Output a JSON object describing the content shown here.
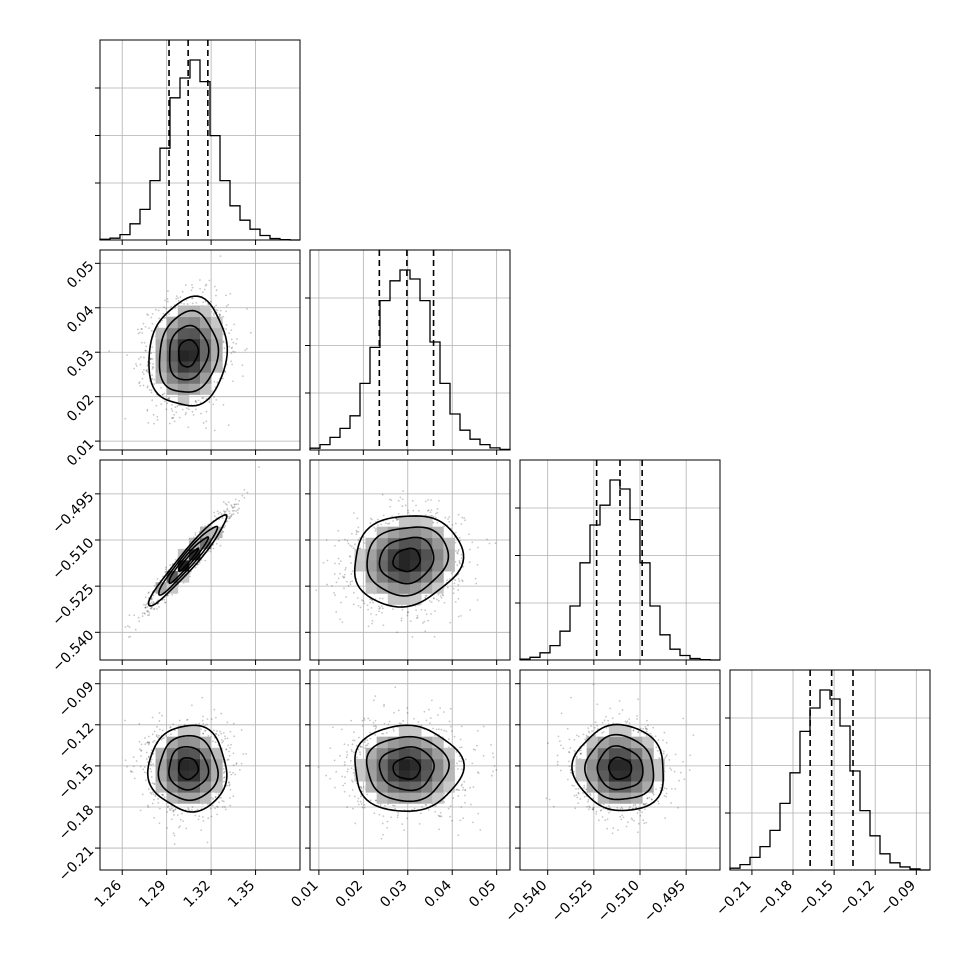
{
  "chart_data": {
    "type": "corner",
    "parameters": [
      {
        "range": [
          1.245,
          1.38
        ],
        "ticks": [
          {
            "value": 1.26,
            "label": "1.26"
          },
          {
            "value": 1.29,
            "label": "1.29"
          },
          {
            "value": 1.32,
            "label": "1.32"
          },
          {
            "value": 1.35,
            "label": "1.35"
          }
        ],
        "quantiles": [
          1.2916,
          1.3045,
          1.3178
        ],
        "histogram": {
          "edges": [
            1.245,
            1.25175,
            1.2585,
            1.26525,
            1.272,
            1.27875,
            1.2855,
            1.29225,
            1.299,
            1.30575,
            1.3125,
            1.31925,
            1.326,
            1.33275,
            1.3395,
            1.34625,
            1.353,
            1.35975,
            1.3665,
            1.37325,
            1.38
          ],
          "counts": [
            0.004,
            0.01,
            0.03,
            0.09,
            0.17,
            0.33,
            0.51,
            0.79,
            0.9,
            1.0,
            0.88,
            0.58,
            0.33,
            0.19,
            0.11,
            0.06,
            0.025,
            0.008,
            0.002,
            0.0
          ]
        }
      },
      {
        "range": [
          0.008,
          0.053
        ],
        "ticks": [
          {
            "value": 0.01,
            "label": "0.01"
          },
          {
            "value": 0.02,
            "label": "0.02"
          },
          {
            "value": 0.03,
            "label": "0.03"
          },
          {
            "value": 0.04,
            "label": "0.04"
          },
          {
            "value": 0.05,
            "label": "0.05"
          }
        ],
        "quantiles": [
          0.0236,
          0.0298,
          0.0358
        ],
        "histogram": {
          "edges": [
            0.008,
            0.01025,
            0.0125,
            0.01475,
            0.017,
            0.01925,
            0.0215,
            0.02375,
            0.026,
            0.02825,
            0.0305,
            0.03275,
            0.035,
            0.03725,
            0.0395,
            0.04175,
            0.044,
            0.04625,
            0.0485,
            0.05075,
            0.053
          ],
          "counts": [
            0.01,
            0.03,
            0.07,
            0.12,
            0.19,
            0.37,
            0.57,
            0.83,
            0.94,
            1.0,
            0.95,
            0.83,
            0.6,
            0.37,
            0.2,
            0.11,
            0.06,
            0.03,
            0.012,
            0.003
          ]
        }
      },
      {
        "range": [
          -0.549,
          -0.484
        ],
        "ticks": [
          {
            "value": -0.54,
            "label": "−0.540"
          },
          {
            "value": -0.525,
            "label": "−0.525"
          },
          {
            "value": -0.51,
            "label": "−0.510"
          },
          {
            "value": -0.495,
            "label": "−0.495"
          }
        ],
        "quantiles": [
          -0.5241,
          -0.5165,
          -0.5093
        ],
        "histogram": {
          "edges": [
            -0.549,
            -0.54575,
            -0.5425,
            -0.53925,
            -0.536,
            -0.53275,
            -0.5295,
            -0.52625,
            -0.523,
            -0.51975,
            -0.5165,
            -0.51325,
            -0.51,
            -0.50675,
            -0.5035,
            -0.50025,
            -0.497,
            -0.49375,
            -0.4905,
            -0.48725,
            -0.484
          ],
          "counts": [
            0.005,
            0.015,
            0.04,
            0.08,
            0.16,
            0.3,
            0.54,
            0.75,
            0.86,
            1.0,
            0.95,
            0.78,
            0.54,
            0.3,
            0.14,
            0.06,
            0.025,
            0.008,
            0.002,
            0.0
          ]
        }
      },
      {
        "range": [
          -0.226,
          -0.08
        ],
        "ticks": [
          {
            "value": -0.21,
            "label": "−0.21"
          },
          {
            "value": -0.18,
            "label": "−0.18"
          },
          {
            "value": -0.15,
            "label": "−0.15"
          },
          {
            "value": -0.12,
            "label": "−0.12"
          },
          {
            "value": -0.09,
            "label": "−0.09"
          }
        ],
        "quantiles": [
          -0.1675,
          -0.1518,
          -0.1362
        ],
        "histogram": {
          "edges": [
            -0.226,
            -0.2187,
            -0.2114,
            -0.2041,
            -0.1968,
            -0.1895,
            -0.1822,
            -0.1749,
            -0.1676,
            -0.1603,
            -0.153,
            -0.1457,
            -0.1384,
            -0.1311,
            -0.1238,
            -0.1165,
            -0.1092,
            -0.1019,
            -0.0946,
            -0.0873,
            -0.08
          ],
          "counts": [
            0.01,
            0.03,
            0.07,
            0.13,
            0.22,
            0.37,
            0.54,
            0.77,
            0.9,
            1.0,
            0.95,
            0.8,
            0.55,
            0.33,
            0.19,
            0.09,
            0.04,
            0.017,
            0.006,
            0.0
          ]
        }
      }
    ],
    "pairs": [
      {
        "row": 1,
        "col": 0,
        "mean": [
          1.3045,
          0.0298
        ],
        "sd": [
          0.0132,
          0.0061
        ],
        "rho": 0.1
      },
      {
        "row": 2,
        "col": 0,
        "mean": [
          1.3045,
          -0.5165
        ],
        "sd": [
          0.0132,
          0.0074
        ],
        "rho": 0.96
      },
      {
        "row": 2,
        "col": 1,
        "mean": [
          0.0298,
          -0.5165
        ],
        "sd": [
          0.0061,
          0.0074
        ],
        "rho": 0.12
      },
      {
        "row": 3,
        "col": 0,
        "mean": [
          1.3045,
          -0.1518
        ],
        "sd": [
          0.0132,
          0.0157
        ],
        "rho": -0.02
      },
      {
        "row": 3,
        "col": 1,
        "mean": [
          0.0298,
          -0.1518
        ],
        "sd": [
          0.0061,
          0.0157
        ],
        "rho": 0.0
      },
      {
        "row": 3,
        "col": 2,
        "mean": [
          -0.5165,
          -0.1518
        ],
        "sd": [
          0.0074,
          0.0157
        ],
        "rho": -0.05
      }
    ],
    "contour_levels_sigma": [
      0.5,
      1.0,
      1.5,
      2.0
    ],
    "grid": true,
    "line_color": "#000000",
    "grid_color": "#b0b0b0",
    "point_color": "#000000"
  }
}
